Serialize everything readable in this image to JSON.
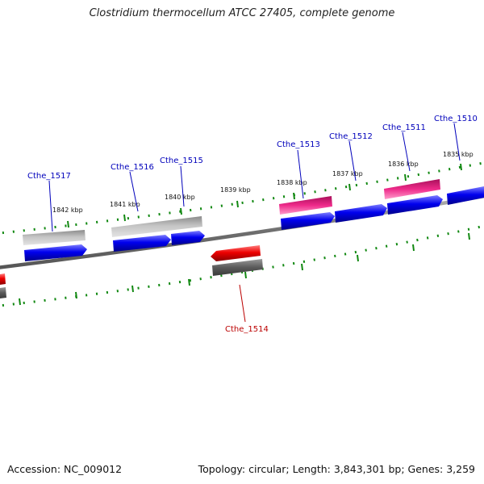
{
  "title": "Clostridium thermocellum ATCC 27405, complete genome",
  "footer": {
    "accession": "Accession: NC_009012",
    "summary": "Topology: circular; Length: 3,843,301 bp; Genes: 3,259"
  },
  "colors": {
    "backbone": "#888888",
    "forward_cds": "#0000ee",
    "reverse_cds": "#ee0000",
    "forward_gene_gray": "#b8b8b8",
    "forward_gene_pink": "#ee2a8a",
    "reverse_gene_gray": "#6a6a6a",
    "tick": "#118811",
    "label_forward": "#0000bb",
    "label_reverse": "#bb0000",
    "kbp_text": "#111111"
  },
  "scale": [
    {
      "label": "1842 kbp"
    },
    {
      "label": "1841 kbp"
    },
    {
      "label": "1840 kbp"
    },
    {
      "label": "1839 kbp"
    },
    {
      "label": "1838 kbp"
    },
    {
      "label": "1837 kbp"
    },
    {
      "label": "1836 kbp"
    },
    {
      "label": "1835 kbp"
    }
  ],
  "genes": [
    {
      "name": "Cthe_1517",
      "strand": "forward"
    },
    {
      "name": "Cthe_1516",
      "strand": "forward"
    },
    {
      "name": "Cthe_1515",
      "strand": "forward"
    },
    {
      "name": "Cthe_1514",
      "strand": "reverse"
    },
    {
      "name": "Cthe_1513",
      "strand": "forward"
    },
    {
      "name": "Cthe_1512",
      "strand": "forward"
    },
    {
      "name": "Cthe_1511",
      "strand": "forward"
    },
    {
      "name": "Cthe_1510",
      "strand": "forward"
    }
  ]
}
